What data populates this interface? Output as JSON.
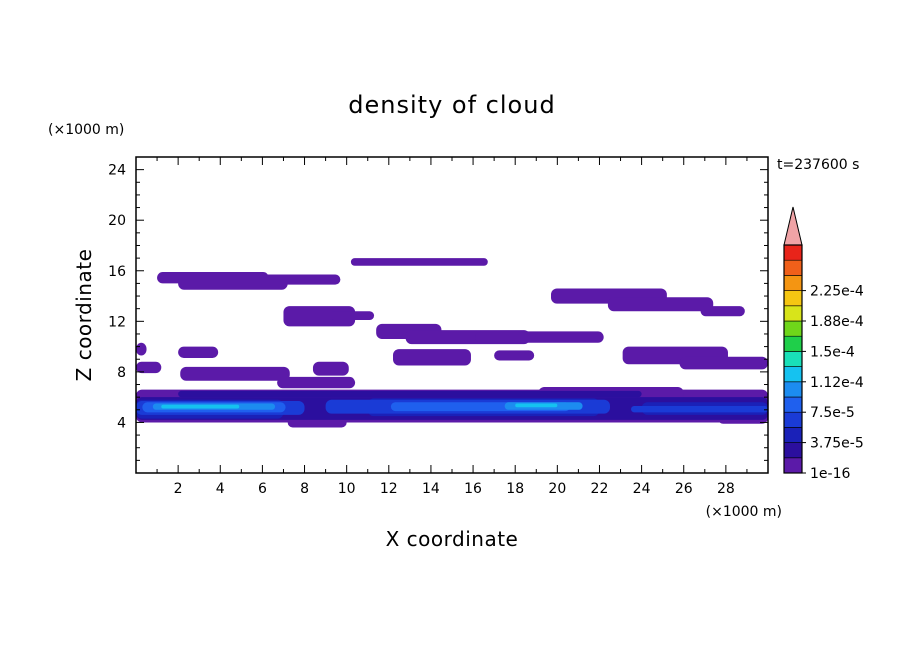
{
  "chart_data": {
    "type": "heatmap",
    "title": "density of cloud",
    "xlabel": "X coordinate",
    "ylabel": "Z coordinate",
    "x_unit": "(×1000 m)",
    "y_unit": "(×1000 m)",
    "time_label": "t=237600 s",
    "xlim": [
      0,
      30
    ],
    "ylim": [
      0,
      25
    ],
    "x_ticks": [
      2,
      4,
      6,
      8,
      10,
      12,
      14,
      16,
      18,
      20,
      22,
      24,
      26,
      28
    ],
    "y_ticks": [
      4,
      8,
      12,
      16,
      20,
      24
    ],
    "colorbar": {
      "labels": [
        "1e-16",
        "3.75e-5",
        "7.5e-5",
        "1.12e-4",
        "1.5e-4",
        "1.88e-4",
        "2.25e-4"
      ],
      "colors": [
        "#5b1aa8",
        "#2b0f9e",
        "#1a21b8",
        "#1a3bd6",
        "#1f60ee",
        "#1c8cf0",
        "#15c2f0",
        "#19e0b8",
        "#1fcf4a",
        "#6fd61a",
        "#d8e41a",
        "#f5c612",
        "#f49512",
        "#f0601a",
        "#e8241a"
      ],
      "extend_color": "#f0a3a6"
    },
    "layers": [
      {
        "level": 1,
        "regions": [
          {
            "x": [
              1.0,
              6.3
            ],
            "z": [
              15.0,
              15.9
            ]
          },
          {
            "x": [
              2.0,
              7.2
            ],
            "z": [
              14.5,
              15.6
            ]
          },
          {
            "x": [
              5.8,
              9.7
            ],
            "z": [
              14.9,
              15.7
            ]
          },
          {
            "x": [
              10.2,
              16.7
            ],
            "z": [
              16.4,
              17.0
            ]
          },
          {
            "x": [
              7.0,
              10.4
            ],
            "z": [
              11.6,
              13.2
            ]
          },
          {
            "x": [
              9.2,
              11.3
            ],
            "z": [
              12.1,
              12.8
            ]
          },
          {
            "x": [
              11.4,
              14.5
            ],
            "z": [
              10.6,
              11.8
            ]
          },
          {
            "x": [
              12.8,
              18.7
            ],
            "z": [
              10.2,
              11.3
            ]
          },
          {
            "x": [
              16.1,
              22.2
            ],
            "z": [
              10.3,
              11.2
            ]
          },
          {
            "x": [
              19.7,
              25.2
            ],
            "z": [
              13.4,
              14.6
            ]
          },
          {
            "x": [
              22.4,
              27.4
            ],
            "z": [
              12.8,
              13.9
            ]
          },
          {
            "x": [
              26.8,
              28.9
            ],
            "z": [
              12.4,
              13.2
            ]
          },
          {
            "x": [
              0.0,
              0.5
            ],
            "z": [
              9.3,
              10.3
            ]
          },
          {
            "x": [
              2.0,
              3.9
            ],
            "z": [
              9.1,
              10.0
            ]
          },
          {
            "x": [
              12.2,
              15.9
            ],
            "z": [
              8.5,
              9.8
            ]
          },
          {
            "x": [
              17.0,
              18.9
            ],
            "z": [
              8.9,
              9.7
            ]
          },
          {
            "x": [
              23.1,
              28.1
            ],
            "z": [
              8.6,
              10.0
            ]
          },
          {
            "x": [
              25.8,
              30.0
            ],
            "z": [
              8.2,
              9.2
            ]
          },
          {
            "x": [
              0.0,
              1.2
            ],
            "z": [
              7.9,
              8.8
            ]
          },
          {
            "x": [
              2.1,
              7.3
            ],
            "z": [
              7.3,
              8.4
            ]
          },
          {
            "x": [
              6.7,
              10.4
            ],
            "z": [
              6.7,
              7.6
            ]
          },
          {
            "x": [
              8.4,
              10.1
            ],
            "z": [
              7.7,
              8.8
            ]
          },
          {
            "x": [
              0.0,
              30.0
            ],
            "z": [
              4.0,
              6.6
            ]
          },
          {
            "x": [
              7.2,
              10.0
            ],
            "z": [
              3.6,
              4.4
            ]
          },
          {
            "x": [
              19.1,
              26.0
            ],
            "z": [
              4.3,
              6.8
            ]
          },
          {
            "x": [
              27.6,
              30.0
            ],
            "z": [
              3.9,
              5.1
            ]
          }
        ]
      },
      {
        "level": 2,
        "regions": [
          {
            "x": [
              0.0,
              30.0
            ],
            "z": [
              4.2,
              6.0
            ]
          },
          {
            "x": [
              2.0,
              24.0
            ],
            "z": [
              6.0,
              6.5
            ]
          }
        ]
      },
      {
        "level": 3,
        "regions": [
          {
            "x": [
              0.0,
              7.0
            ],
            "z": [
              4.3,
              5.8
            ]
          },
          {
            "x": [
              11.0,
              22.0
            ],
            "z": [
              4.5,
              5.9
            ]
          },
          {
            "x": [
              24.0,
              30.0
            ],
            "z": [
              4.6,
              5.6
            ]
          }
        ]
      },
      {
        "level": 4,
        "regions": [
          {
            "x": [
              0.0,
              8.0
            ],
            "z": [
              4.6,
              5.7
            ]
          },
          {
            "x": [
              9.0,
              22.5
            ],
            "z": [
              4.7,
              5.8
            ]
          },
          {
            "x": [
              23.5,
              30.0
            ],
            "z": [
              4.8,
              5.3
            ]
          }
        ]
      },
      {
        "level": 5,
        "regions": [
          {
            "x": [
              0.3,
              7.1
            ],
            "z": [
              4.8,
              5.6
            ]
          },
          {
            "x": [
              12.1,
              20.6
            ],
            "z": [
              4.9,
              5.6
            ]
          }
        ]
      },
      {
        "level": 6,
        "regions": [
          {
            "x": [
              0.8,
              6.6
            ],
            "z": [
              5.0,
              5.5
            ]
          },
          {
            "x": [
              17.5,
              21.2
            ],
            "z": [
              5.0,
              5.6
            ]
          }
        ]
      },
      {
        "level": 7,
        "regions": [
          {
            "x": [
              1.2,
              4.9
            ],
            "z": [
              5.1,
              5.4
            ]
          },
          {
            "x": [
              18.0,
              20.0
            ],
            "z": [
              5.2,
              5.5
            ]
          }
        ]
      }
    ]
  }
}
